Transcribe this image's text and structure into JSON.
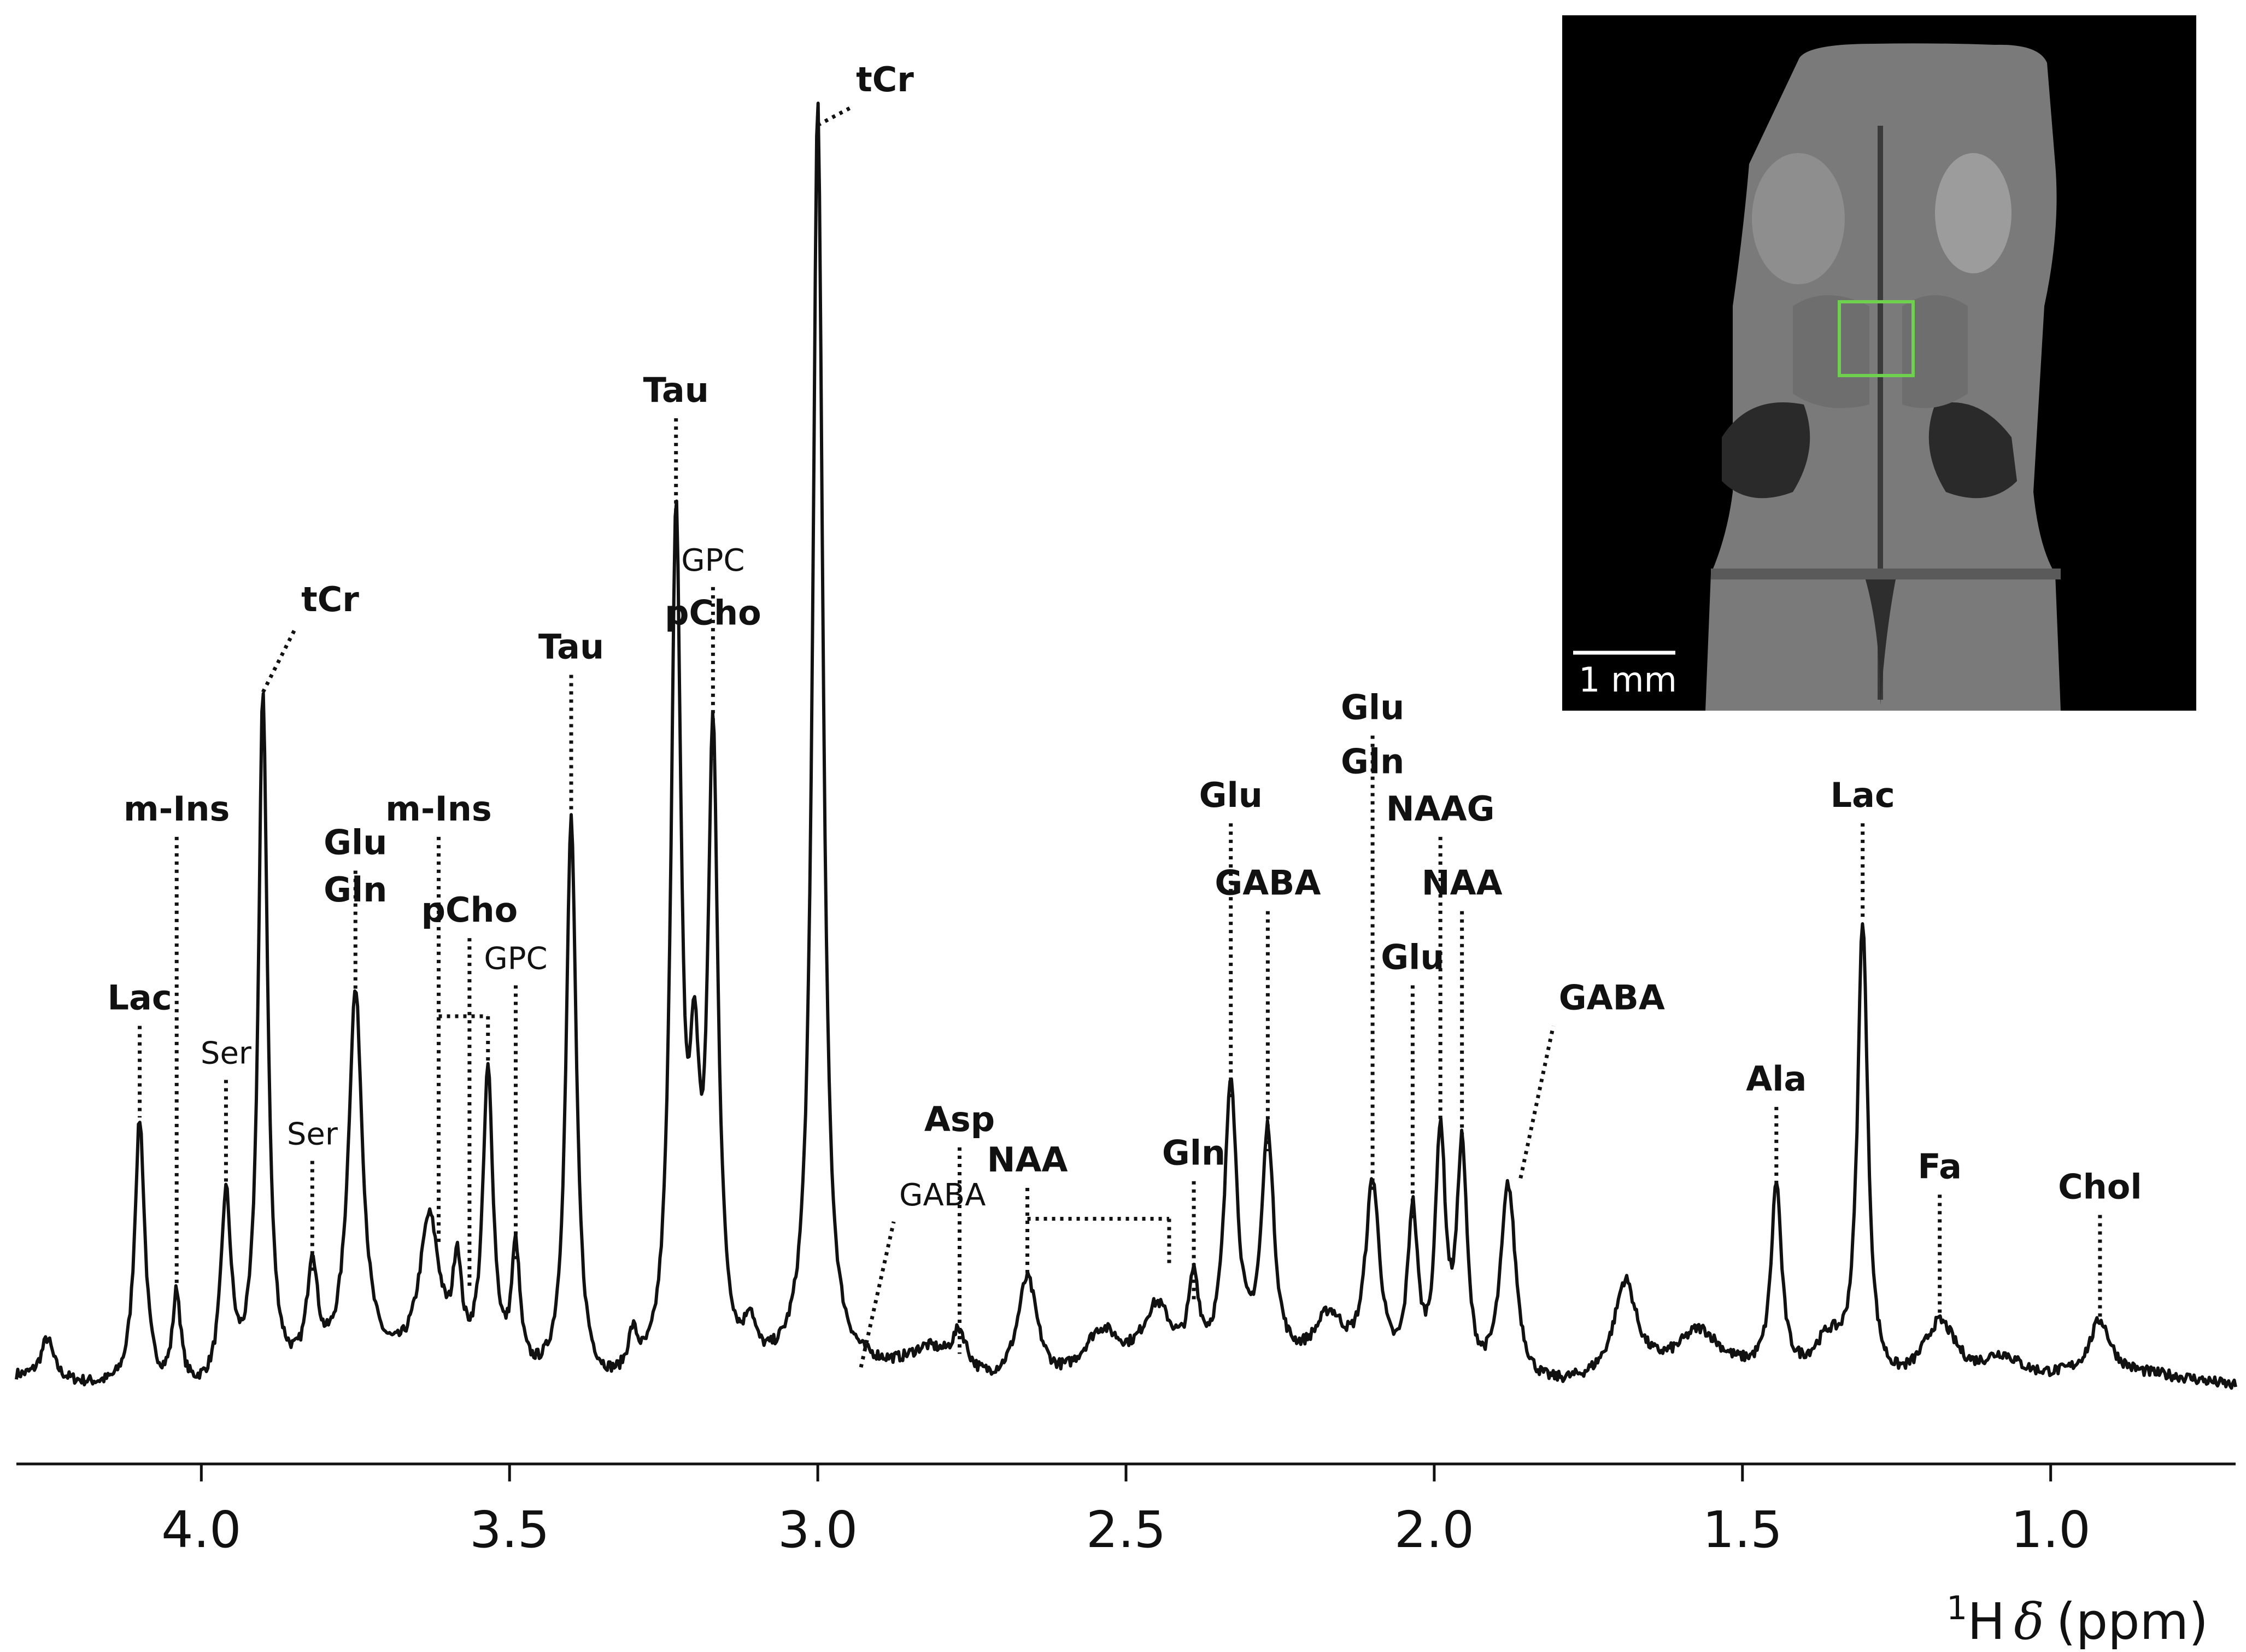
{
  "chart_data": {
    "type": "line",
    "title": "",
    "xlabel": {
      "superscript": "1",
      "nucleus": "H",
      "symbol": "δ",
      "unit": "(ppm)"
    },
    "ylabel": "",
    "x_reversed": true,
    "xlim": [
      4.3,
      0.7
    ],
    "ylim": [
      0,
      1.0
    ],
    "x_ticks": [
      {
        "value": 4.0,
        "label": "4.0"
      },
      {
        "value": 3.5,
        "label": "3.5"
      },
      {
        "value": 3.0,
        "label": "3.0"
      },
      {
        "value": 2.5,
        "label": "2.5"
      },
      {
        "value": 2.0,
        "label": "2.0"
      },
      {
        "value": 1.5,
        "label": "1.5"
      },
      {
        "value": 1.0,
        "label": "1.0"
      }
    ],
    "grid": false,
    "line_color": "#111111",
    "series": [
      {
        "baseline": 0.025,
        "peaks": [
          {
            "x": 4.25,
            "h": 0.03,
            "w": 0.012
          },
          {
            "x": 4.1,
            "h": 0.2,
            "w": 0.01
          },
          {
            "x": 4.04,
            "h": 0.07,
            "w": 0.008
          },
          {
            "x": 3.96,
            "h": 0.14,
            "w": 0.01
          },
          {
            "x": 3.9,
            "h": 0.51,
            "w": 0.009
          },
          {
            "x": 3.82,
            "h": 0.08,
            "w": 0.01
          },
          {
            "x": 3.75,
            "h": 0.28,
            "w": 0.014
          },
          {
            "x": 3.63,
            "h": 0.11,
            "w": 0.02
          },
          {
            "x": 3.585,
            "h": 0.07,
            "w": 0.008
          },
          {
            "x": 3.535,
            "h": 0.22,
            "w": 0.01
          },
          {
            "x": 3.49,
            "h": 0.09,
            "w": 0.008
          },
          {
            "x": 3.4,
            "h": 0.42,
            "w": 0.01
          },
          {
            "x": 3.3,
            "h": 0.03,
            "w": 0.01
          },
          {
            "x": 3.23,
            "h": 0.63,
            "w": 0.01
          },
          {
            "x": 3.2,
            "h": 0.18,
            "w": 0.01
          },
          {
            "x": 3.17,
            "h": 0.46,
            "w": 0.01
          },
          {
            "x": 3.11,
            "h": 0.03,
            "w": 0.01
          },
          {
            "x": 3.0,
            "h": 0.94,
            "w": 0.01
          },
          {
            "x": 2.82,
            "h": 0.02,
            "w": 0.04
          },
          {
            "x": 2.77,
            "h": 0.03,
            "w": 0.015
          },
          {
            "x": 2.66,
            "h": 0.08,
            "w": 0.02
          },
          {
            "x": 2.54,
            "h": 0.04,
            "w": 0.04
          },
          {
            "x": 2.45,
            "h": 0.05,
            "w": 0.03
          },
          {
            "x": 2.39,
            "h": 0.06,
            "w": 0.01
          },
          {
            "x": 2.33,
            "h": 0.21,
            "w": 0.012
          },
          {
            "x": 2.27,
            "h": 0.17,
            "w": 0.012
          },
          {
            "x": 2.17,
            "h": 0.04,
            "w": 0.03
          },
          {
            "x": 2.1,
            "h": 0.14,
            "w": 0.014
          },
          {
            "x": 2.035,
            "h": 0.12,
            "w": 0.01
          },
          {
            "x": 1.99,
            "h": 0.18,
            "w": 0.01
          },
          {
            "x": 1.955,
            "h": 0.17,
            "w": 0.01
          },
          {
            "x": 1.88,
            "h": 0.15,
            "w": 0.015
          },
          {
            "x": 1.69,
            "h": 0.07,
            "w": 0.022
          },
          {
            "x": 1.57,
            "h": 0.03,
            "w": 0.04
          },
          {
            "x": 1.445,
            "h": 0.14,
            "w": 0.01
          },
          {
            "x": 1.36,
            "h": 0.03,
            "w": 0.03
          },
          {
            "x": 1.305,
            "h": 0.34,
            "w": 0.01
          },
          {
            "x": 1.18,
            "h": 0.05,
            "w": 0.035
          },
          {
            "x": 1.08,
            "h": 0.02,
            "w": 0.04
          },
          {
            "x": 0.92,
            "h": 0.04,
            "w": 0.02
          }
        ]
      }
    ],
    "annotations": [
      {
        "text": "Lac",
        "x": 4.1,
        "y": 0.225,
        "label_y": 0.305,
        "weight": "bold"
      },
      {
        "text": "m-Ins",
        "x": 4.04,
        "y": 0.1,
        "label_y": 0.445,
        "weight": "bold"
      },
      {
        "text": "Ser",
        "x": 3.96,
        "y": 0.17,
        "label_y": 0.265,
        "weight": "normal"
      },
      {
        "text": "tCr",
        "x": 3.9,
        "y": 0.54,
        "label_y": 0.6,
        "weight": "bold",
        "slanted": true
      },
      {
        "text": "Ser",
        "x": 3.82,
        "y": 0.11,
        "label_y": 0.205,
        "weight": "normal"
      },
      {
        "text": "Glu",
        "x": 3.75,
        "y": 0.31,
        "label_y": 0.42,
        "weight": "bold"
      },
      {
        "text": "Gln",
        "x": 3.75,
        "y": 0.31,
        "label_y": 0.385,
        "weight": "bold",
        "no_leader": true
      },
      {
        "text": "m-Ins",
        "x": 3.615,
        "y": 0.13,
        "label_y": 0.445,
        "weight": "bold"
      },
      {
        "text": "pCho",
        "x": 3.565,
        "y": 0.1,
        "label_y": 0.37,
        "weight": "bold"
      },
      {
        "text": "GPC",
        "x": 3.49,
        "y": 0.12,
        "label_y": 0.335,
        "weight": "normal"
      },
      {
        "text": "Tau",
        "x": 3.4,
        "y": 0.45,
        "label_y": 0.565,
        "weight": "bold"
      },
      {
        "text": "Tau",
        "x": 3.23,
        "y": 0.66,
        "label_y": 0.755,
        "weight": "bold"
      },
      {
        "text": "GPC",
        "x": 3.17,
        "y": 0.49,
        "label_y": 0.63,
        "weight": "normal"
      },
      {
        "text": "pCho",
        "x": 3.17,
        "y": 0.49,
        "label_y": 0.59,
        "weight": "bold",
        "no_leader": true
      },
      {
        "text": "tCr",
        "x": 3.0,
        "y": 0.96,
        "label_y": 0.985,
        "weight": "bold",
        "slanted": true
      },
      {
        "text": "GABA",
        "x": 2.93,
        "y": 0.04,
        "label_y": 0.16,
        "weight": "normal",
        "slanted": true
      },
      {
        "text": "Asp",
        "x": 2.77,
        "y": 0.05,
        "label_y": 0.215,
        "weight": "bold"
      },
      {
        "text": "NAA",
        "x": 2.66,
        "y": 0.11,
        "label_y": 0.185,
        "weight": "bold"
      },
      {
        "text": "Gln",
        "x": 2.39,
        "y": 0.09,
        "label_y": 0.19,
        "weight": "bold"
      },
      {
        "text": "Glu",
        "x": 2.33,
        "y": 0.24,
        "label_y": 0.455,
        "weight": "bold"
      },
      {
        "text": "GABA",
        "x": 2.27,
        "y": 0.2,
        "label_y": 0.39,
        "weight": "bold"
      },
      {
        "text": "Glu",
        "x": 2.1,
        "y": 0.17,
        "label_y": 0.52,
        "weight": "bold"
      },
      {
        "text": "Gln",
        "x": 2.1,
        "y": 0.17,
        "label_y": 0.48,
        "weight": "bold",
        "no_leader": true
      },
      {
        "text": "Glu",
        "x": 2.035,
        "y": 0.15,
        "label_y": 0.335,
        "weight": "bold"
      },
      {
        "text": "NAAG",
        "x": 1.99,
        "y": 0.21,
        "label_y": 0.445,
        "weight": "bold"
      },
      {
        "text": "NAA",
        "x": 1.955,
        "y": 0.2,
        "label_y": 0.39,
        "weight": "bold"
      },
      {
        "text": "GABA",
        "x": 1.86,
        "y": 0.18,
        "label_y": 0.305,
        "weight": "bold",
        "slanted": true
      },
      {
        "text": "Ala",
        "x": 1.445,
        "y": 0.17,
        "label_y": 0.245,
        "weight": "bold"
      },
      {
        "text": "Lac",
        "x": 1.305,
        "y": 0.37,
        "label_y": 0.455,
        "weight": "bold"
      },
      {
        "text": "Fa",
        "x": 1.18,
        "y": 0.08,
        "label_y": 0.18,
        "weight": "bold"
      },
      {
        "text": "Chol",
        "x": 0.92,
        "y": 0.07,
        "label_y": 0.165,
        "weight": "bold"
      }
    ],
    "brackets": [
      {
        "x_start": 3.615,
        "x_end": 3.535,
        "y": 0.3
      },
      {
        "x_start": 2.66,
        "x_end": 2.43,
        "y": 0.15
      }
    ]
  },
  "inset": {
    "scale_bar_label": "1 mm",
    "roi_color": "#6fcf4f",
    "background_color": "#000000"
  }
}
